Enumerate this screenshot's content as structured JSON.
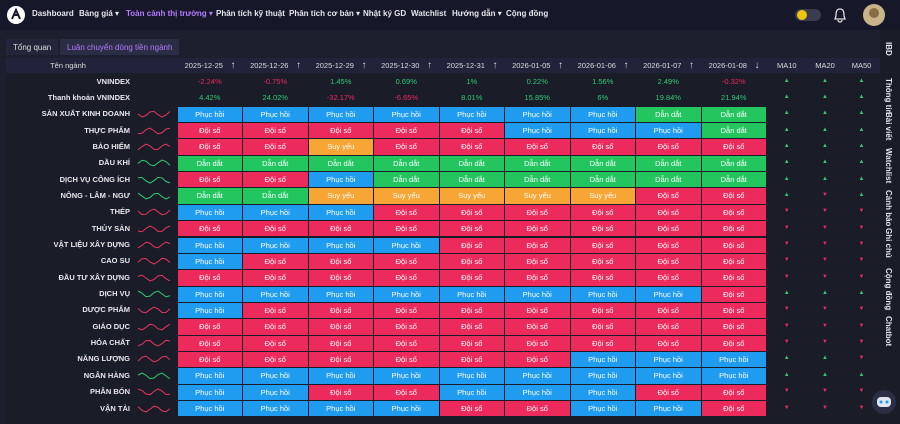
{
  "nav": {
    "items": [
      "Dashboard",
      "Bảng giá ▾",
      "Toàn cảnh thị trường ▾",
      "Phân tích kỹ thuật",
      "Phân tích cơ bản ▾",
      "Nhật ký GD",
      "Watchlist",
      "Hướng dẫn ▾",
      "Cộng đồng"
    ],
    "active": 2
  },
  "tabs": {
    "items": [
      "Tổng quan",
      "Luân chuyển dòng tiền ngành"
    ],
    "active": 1
  },
  "table": {
    "header": {
      "name": "Tên ngành",
      "dates": [
        "2025-12-25",
        "2025-12-26",
        "2025-12-29",
        "2025-12-30",
        "2025-12-31",
        "2026-01-05",
        "2026-01-06",
        "2026-01-07",
        "2026-01-08"
      ],
      "sort": [
        "↑",
        "↑",
        "↑",
        "↑",
        "↑",
        "↑",
        "↑",
        "↑",
        "↓"
      ],
      "ma": [
        "MA10",
        "MA20",
        "MA50"
      ]
    },
    "indexRows": [
      {
        "name": "VNINDEX",
        "values": [
          "-2.24%",
          "-0.75%",
          "1.45%",
          "0.69%",
          "1%",
          "0.22%",
          "1.56%",
          "2.49%",
          "-0.32%"
        ],
        "ma": [
          "▲",
          "▲",
          "▲"
        ]
      },
      {
        "name": "Thanh khoản VNINDEX",
        "values": [
          "4.42%",
          "24.02%",
          "-32.17%",
          "-6.65%",
          "8.01%",
          "15.85%",
          "6%",
          "19.84%",
          "21.94%"
        ],
        "ma": [
          "▲",
          "▲",
          "▲"
        ]
      }
    ],
    "sectorRows": [
      {
        "name": "SẢN XUẤT KINH DOANH",
        "spark": "#e8365d",
        "cells": [
          "Phục hồi",
          "Phục hồi",
          "Phục hồi",
          "Phục hồi",
          "Phục hồi",
          "Phục hồi",
          "Phục hồi",
          "Dẫn dắt",
          "Dẫn dắt"
        ],
        "ma": [
          "▲",
          "▲",
          "▲"
        ]
      },
      {
        "name": "THỰC PHẨM",
        "spark": "#e8365d",
        "cells": [
          "Đội sổ",
          "Đội sổ",
          "Đội sổ",
          "Đội sổ",
          "Đội sổ",
          "Phục hồi",
          "Phục hồi",
          "Phục hồi",
          "Dẫn dắt"
        ],
        "ma": [
          "▲",
          "▲",
          "▲"
        ]
      },
      {
        "name": "BẢO HIỂM",
        "spark": "#e8365d",
        "cells": [
          "Đội sổ",
          "Đội sổ",
          "Suy yếu",
          "Đội sổ",
          "Đội sổ",
          "Đội sổ",
          "Đội sổ",
          "Đội sổ",
          "Đội sổ"
        ],
        "ma": [
          "▲",
          "▲",
          "▲"
        ]
      },
      {
        "name": "DẦU KHÍ",
        "spark": "#2ecc71",
        "cells": [
          "Dẫn dắt",
          "Dẫn dắt",
          "Dẫn dắt",
          "Dẫn dắt",
          "Dẫn dắt",
          "Dẫn dắt",
          "Dẫn dắt",
          "Dẫn dắt",
          "Dẫn dắt"
        ],
        "ma": [
          "▲",
          "▲",
          "▲"
        ]
      },
      {
        "name": "DỊCH VỤ CÔNG ÍCH",
        "spark": "#2ecc71",
        "cells": [
          "Đội sổ",
          "Đội sổ",
          "Phục hồi",
          "Dẫn dắt",
          "Dẫn dắt",
          "Dẫn dắt",
          "Dẫn dắt",
          "Dẫn dắt",
          "Dẫn dắt"
        ],
        "ma": [
          "▲",
          "▲",
          "▲"
        ]
      },
      {
        "name": "NÔNG - LÂM - NGƯ",
        "spark": "#2ecc71",
        "cells": [
          "Dẫn dắt",
          "Dẫn dắt",
          "Suy yếu",
          "Suy yếu",
          "Suy yếu",
          "Suy yếu",
          "Suy yếu",
          "Đội sổ",
          "Đội sổ"
        ],
        "ma": [
          "▲",
          "▼",
          "▲"
        ]
      },
      {
        "name": "THÉP",
        "spark": "#e8365d",
        "cells": [
          "Phục hồi",
          "Phục hồi",
          "Phục hồi",
          "Đội sổ",
          "Đội sổ",
          "Đội sổ",
          "Đội sổ",
          "Đội sổ",
          "Đội sổ"
        ],
        "ma": [
          "▼",
          "▼",
          "▼"
        ]
      },
      {
        "name": "THỦY SẢN",
        "spark": "#e8365d",
        "cells": [
          "Đội sổ",
          "Đội sổ",
          "Đội sổ",
          "Đội sổ",
          "Đội sổ",
          "Đội sổ",
          "Đội sổ",
          "Đội sổ",
          "Đội sổ"
        ],
        "ma": [
          "▼",
          "▼",
          "▼"
        ]
      },
      {
        "name": "VẬT LIỆU XÂY DỰNG",
        "spark": "#e8365d",
        "cells": [
          "Phục hồi",
          "Phục hồi",
          "Phục hồi",
          "Phục hồi",
          "Đội sổ",
          "Đội sổ",
          "Đội sổ",
          "Đội sổ",
          "Đội sổ"
        ],
        "ma": [
          "▼",
          "▼",
          "▼"
        ]
      },
      {
        "name": "CAO SU",
        "spark": "#e8365d",
        "cells": [
          "Phục hồi",
          "Đội sổ",
          "Đội sổ",
          "Đội sổ",
          "Đội sổ",
          "Đội sổ",
          "Đội sổ",
          "Đội sổ",
          "Đội sổ"
        ],
        "ma": [
          "▼",
          "▼",
          "▼"
        ]
      },
      {
        "name": "ĐẦU TƯ XÂY DỰNG",
        "spark": "#e8365d",
        "cells": [
          "Đội sổ",
          "Đội sổ",
          "Đội sổ",
          "Đội sổ",
          "Đội sổ",
          "Đội sổ",
          "Đội sổ",
          "Đội sổ",
          "Đội sổ"
        ],
        "ma": [
          "▼",
          "▼",
          "▼"
        ]
      },
      {
        "name": "DỊCH VỤ",
        "spark": "#2ecc71",
        "cells": [
          "Phục hồi",
          "Phục hồi",
          "Phục hồi",
          "Phục hồi",
          "Phục hồi",
          "Phục hồi",
          "Phục hồi",
          "Phục hồi",
          "Đội sổ"
        ],
        "ma": [
          "▲",
          "▲",
          "▲"
        ]
      },
      {
        "name": "DƯỢC PHẨM",
        "spark": "#e8365d",
        "cells": [
          "Phục hồi",
          "Đội sổ",
          "Đội sổ",
          "Đội sổ",
          "Đội sổ",
          "Đội sổ",
          "Đội sổ",
          "Đội sổ",
          "Đội sổ"
        ],
        "ma": [
          "▼",
          "▼",
          "▼"
        ]
      },
      {
        "name": "GIÁO DỤC",
        "spark": "#e8365d",
        "cells": [
          "Đội sổ",
          "Đội sổ",
          "Đội sổ",
          "Đội sổ",
          "Đội sổ",
          "Đội sổ",
          "Đội sổ",
          "Đội sổ",
          "Đội sổ"
        ],
        "ma": [
          "▼",
          "▼",
          "▼"
        ]
      },
      {
        "name": "HÓA CHẤT",
        "spark": "#e8365d",
        "cells": [
          "Đội sổ",
          "Đội sổ",
          "Đội sổ",
          "Đội sổ",
          "Đội sổ",
          "Đội sổ",
          "Đội sổ",
          "Đội sổ",
          "Đội sổ"
        ],
        "ma": [
          "▼",
          "▼",
          "▼"
        ]
      },
      {
        "name": "NĂNG LƯỢNG",
        "spark": "#e8365d",
        "cells": [
          "Đội sổ",
          "Đội sổ",
          "Đội sổ",
          "Đội sổ",
          "Đội sổ",
          "Đội sổ",
          "Phục hồi",
          "Phục hồi",
          "Phục hồi"
        ],
        "ma": [
          "▲",
          "▲",
          "▼"
        ]
      },
      {
        "name": "NGÂN HÀNG",
        "spark": "#2ecc71",
        "cells": [
          "Phục hồi",
          "Phục hồi",
          "Phục hồi",
          "Phục hồi",
          "Phục hồi",
          "Phục hồi",
          "Phục hồi",
          "Phục hồi",
          "Phục hồi"
        ],
        "ma": [
          "▲",
          "▲",
          "▲"
        ]
      },
      {
        "name": "PHÂN BÓN",
        "spark": "#e8365d",
        "cells": [
          "Phục hồi",
          "Phục hồi",
          "Đội sổ",
          "Đội sổ",
          "Phục hồi",
          "Phục hồi",
          "Phục hồi",
          "Đội sổ",
          "Đội sổ"
        ],
        "ma": [
          "▼",
          "▼",
          "▼"
        ]
      },
      {
        "name": "VẬN TẢI",
        "spark": "#e8365d",
        "cells": [
          "Phục hồi",
          "Phục hồi",
          "Phục hồi",
          "Phục hồi",
          "Đội sổ",
          "Đội sổ",
          "Phục hồi",
          "Phục hồi",
          "Đội sổ"
        ],
        "ma": [
          "▼",
          "▼",
          "▼"
        ]
      }
    ],
    "statusColors": {
      "Phục hồi": "#1f9cf0",
      "Đội sổ": "#ec2a5c",
      "Suy yếu": "#f7a534",
      "Dẫn dắt": "#22c55e"
    },
    "arrowColors": {
      "▲": "#2ecc71",
      "▼": "#ec2a5c"
    },
    "signColors": {
      "positive": "#2ecc71",
      "negative": "#ec2a5c"
    }
  },
  "sidebar": [
    "IBD",
    "Thông tin",
    "Bài viết",
    "Watchlist",
    "Cảnh báo",
    "Ghi chú",
    "Cộng đồng",
    "Chatbot"
  ]
}
